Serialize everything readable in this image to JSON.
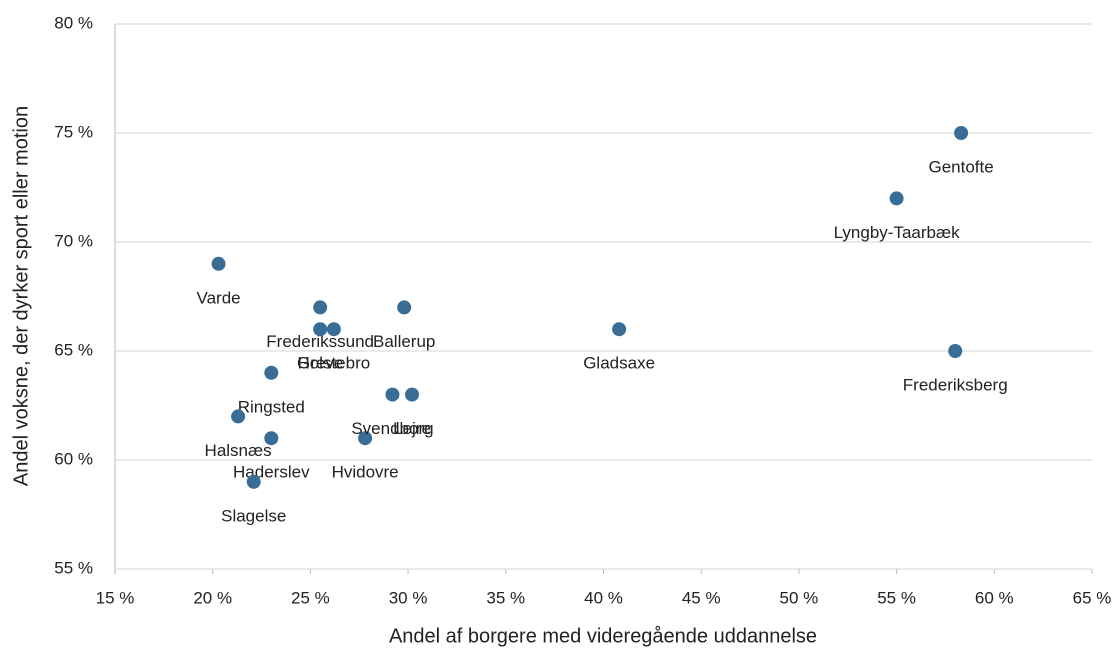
{
  "chart_data": {
    "type": "scatter",
    "xlabel": "Andel af borgere med videregående uddannelse",
    "ylabel": "Andel voksne, der dyrker sport eller motion",
    "color": "#3a6d96",
    "grid": true,
    "xlim": [
      15,
      65
    ],
    "xticks": [
      {
        "value": 15,
        "label": "15 %"
      },
      {
        "value": 20,
        "label": "20 %"
      },
      {
        "value": 25,
        "label": "25 %"
      },
      {
        "value": 30,
        "label": "30 %"
      },
      {
        "value": 35,
        "label": "35 %"
      },
      {
        "value": 40,
        "label": "40 %"
      },
      {
        "value": 45,
        "label": "45 %"
      },
      {
        "value": 50,
        "label": "50 %"
      },
      {
        "value": 55,
        "label": "55 %"
      },
      {
        "value": 60,
        "label": "60 %"
      },
      {
        "value": 65,
        "label": "65 %"
      }
    ],
    "ylim": [
      55,
      80
    ],
    "yticks": [
      {
        "value": 55,
        "label": "55 %"
      },
      {
        "value": 60,
        "label": "60 %"
      },
      {
        "value": 65,
        "label": "65 %"
      },
      {
        "value": 70,
        "label": "70 %"
      },
      {
        "value": 75,
        "label": "75 %"
      },
      {
        "value": 80,
        "label": "80 %"
      }
    ],
    "labels": [
      "Gentofte",
      "Lyngby-Taarbæk",
      "Frederiksberg",
      "Gladsaxe",
      "Varde",
      "Frederikssund",
      "Ballerup",
      "Greve",
      "Holstebro",
      "Ringsted",
      "Halsnæs",
      "Haderslev",
      "Slagelse",
      "Hvidovre",
      "Svendborg",
      "Lejre"
    ],
    "x": [
      58.3,
      55,
      58,
      40.8,
      20.3,
      25.5,
      29.8,
      25.5,
      26.2,
      23,
      21.3,
      23,
      22.1,
      27.8,
      29.2,
      30.2
    ],
    "values": [
      75,
      72,
      65,
      66,
      69,
      67,
      67,
      66,
      66,
      64,
      62,
      61,
      59,
      61,
      63,
      63
    ]
  }
}
